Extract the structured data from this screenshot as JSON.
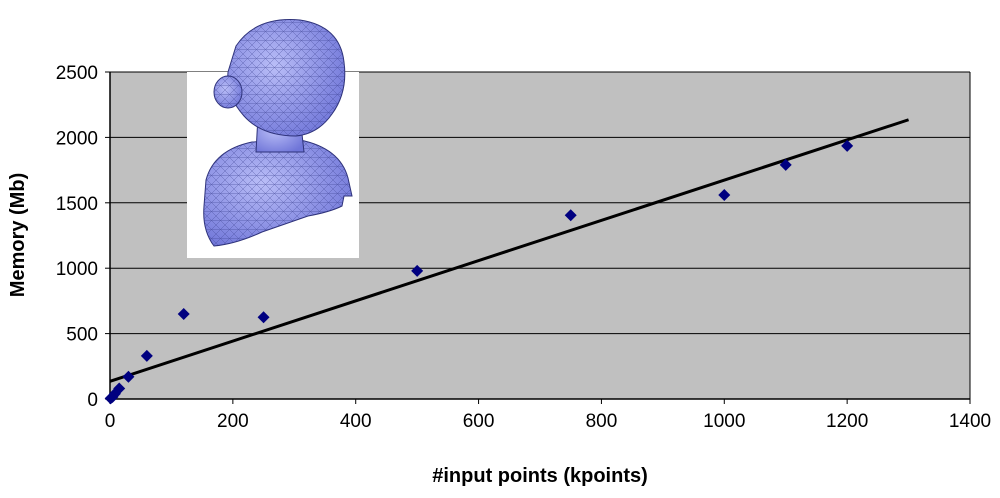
{
  "chart_data": {
    "type": "scatter",
    "xlabel": "#input points (kpoints)",
    "ylabel": "Memory (Mb)",
    "xlim": [
      0,
      1400
    ],
    "ylim": [
      0,
      2500
    ],
    "x_ticks": [
      0,
      200,
      400,
      600,
      800,
      1000,
      1200,
      1400
    ],
    "y_ticks": [
      0,
      500,
      1000,
      1500,
      2000,
      2500
    ],
    "grid": "horizontal",
    "plot_background": "#c0c0c0",
    "marker_color": "#000080",
    "marker": "diamond",
    "series": [
      {
        "x": [
          1,
          4,
          8,
          15,
          30,
          60,
          120,
          250,
          500,
          750,
          1000,
          1100,
          1200
        ],
        "y": [
          5,
          15,
          40,
          80,
          170,
          330,
          650,
          625,
          980,
          1405,
          1560,
          1790,
          1935
        ]
      }
    ],
    "trendline": {
      "type": "linear",
      "color": "#000000",
      "x": [
        0,
        1300
      ],
      "y": [
        135,
        2135
      ]
    },
    "inset_image": "3d-mesh-bust-of-girl"
  }
}
